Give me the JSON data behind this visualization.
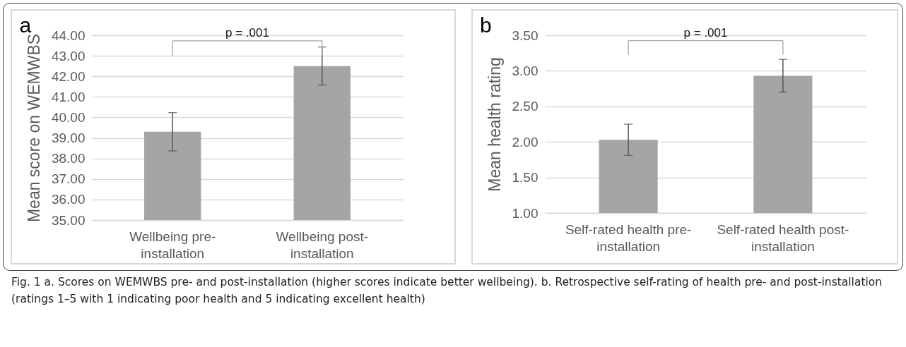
{
  "chart_data": [
    {
      "type": "bar",
      "title": "a",
      "ylabel": "Mean score on WEMWBS",
      "categories": [
        "Wellbeing pre-installation",
        "Wellbeing post-installation"
      ],
      "values": [
        39.3,
        42.5
      ],
      "errors": [
        0.93,
        0.93
      ],
      "color": "#a5a5a5",
      "ylim": [
        35,
        44
      ],
      "yticks": [
        {
          "value": 35,
          "label": "35.00"
        },
        {
          "value": 36,
          "label": "36.00"
        },
        {
          "value": 37,
          "label": "37.00"
        },
        {
          "value": 38,
          "label": "38.00"
        },
        {
          "value": 39,
          "label": "39.00"
        },
        {
          "value": 40,
          "label": "40.00"
        },
        {
          "value": 41,
          "label": "41.00"
        },
        {
          "value": 42,
          "label": "42.00"
        },
        {
          "value": 43,
          "label": "43.00"
        },
        {
          "value": 44,
          "label": "44.00"
        }
      ],
      "grid": "y",
      "annotations": [
        "p = .001"
      ]
    },
    {
      "type": "bar",
      "title": "b",
      "ylabel": "Mean health rating",
      "categories": [
        "Self-rated health pre-installation",
        "Self-rated health post-installation"
      ],
      "values": [
        2.03,
        2.93
      ],
      "errors": [
        0.22,
        0.23
      ],
      "color": "#a5a5a5",
      "ylim": [
        1,
        3.5
      ],
      "yticks": [
        {
          "value": 1,
          "label": "1.00"
        },
        {
          "value": 1.5,
          "label": "1.50"
        },
        {
          "value": 2,
          "label": "2.00"
        },
        {
          "value": 2.5,
          "label": "2.50"
        },
        {
          "value": 3,
          "label": "3.00"
        },
        {
          "value": 3.5,
          "label": "3.50"
        }
      ],
      "grid": "y",
      "annotations": [
        "p = .001",
        "Fig. 1 a. Scores on WEMWBS pre- and post-installation (higher scores indicate better wellbeing). b. Retrospective self-rating of health pre- and post-installation (ratings 1–5 with 1 indicating poor health and 5 indicating excellent health)"
      ]
    }
  ]
}
